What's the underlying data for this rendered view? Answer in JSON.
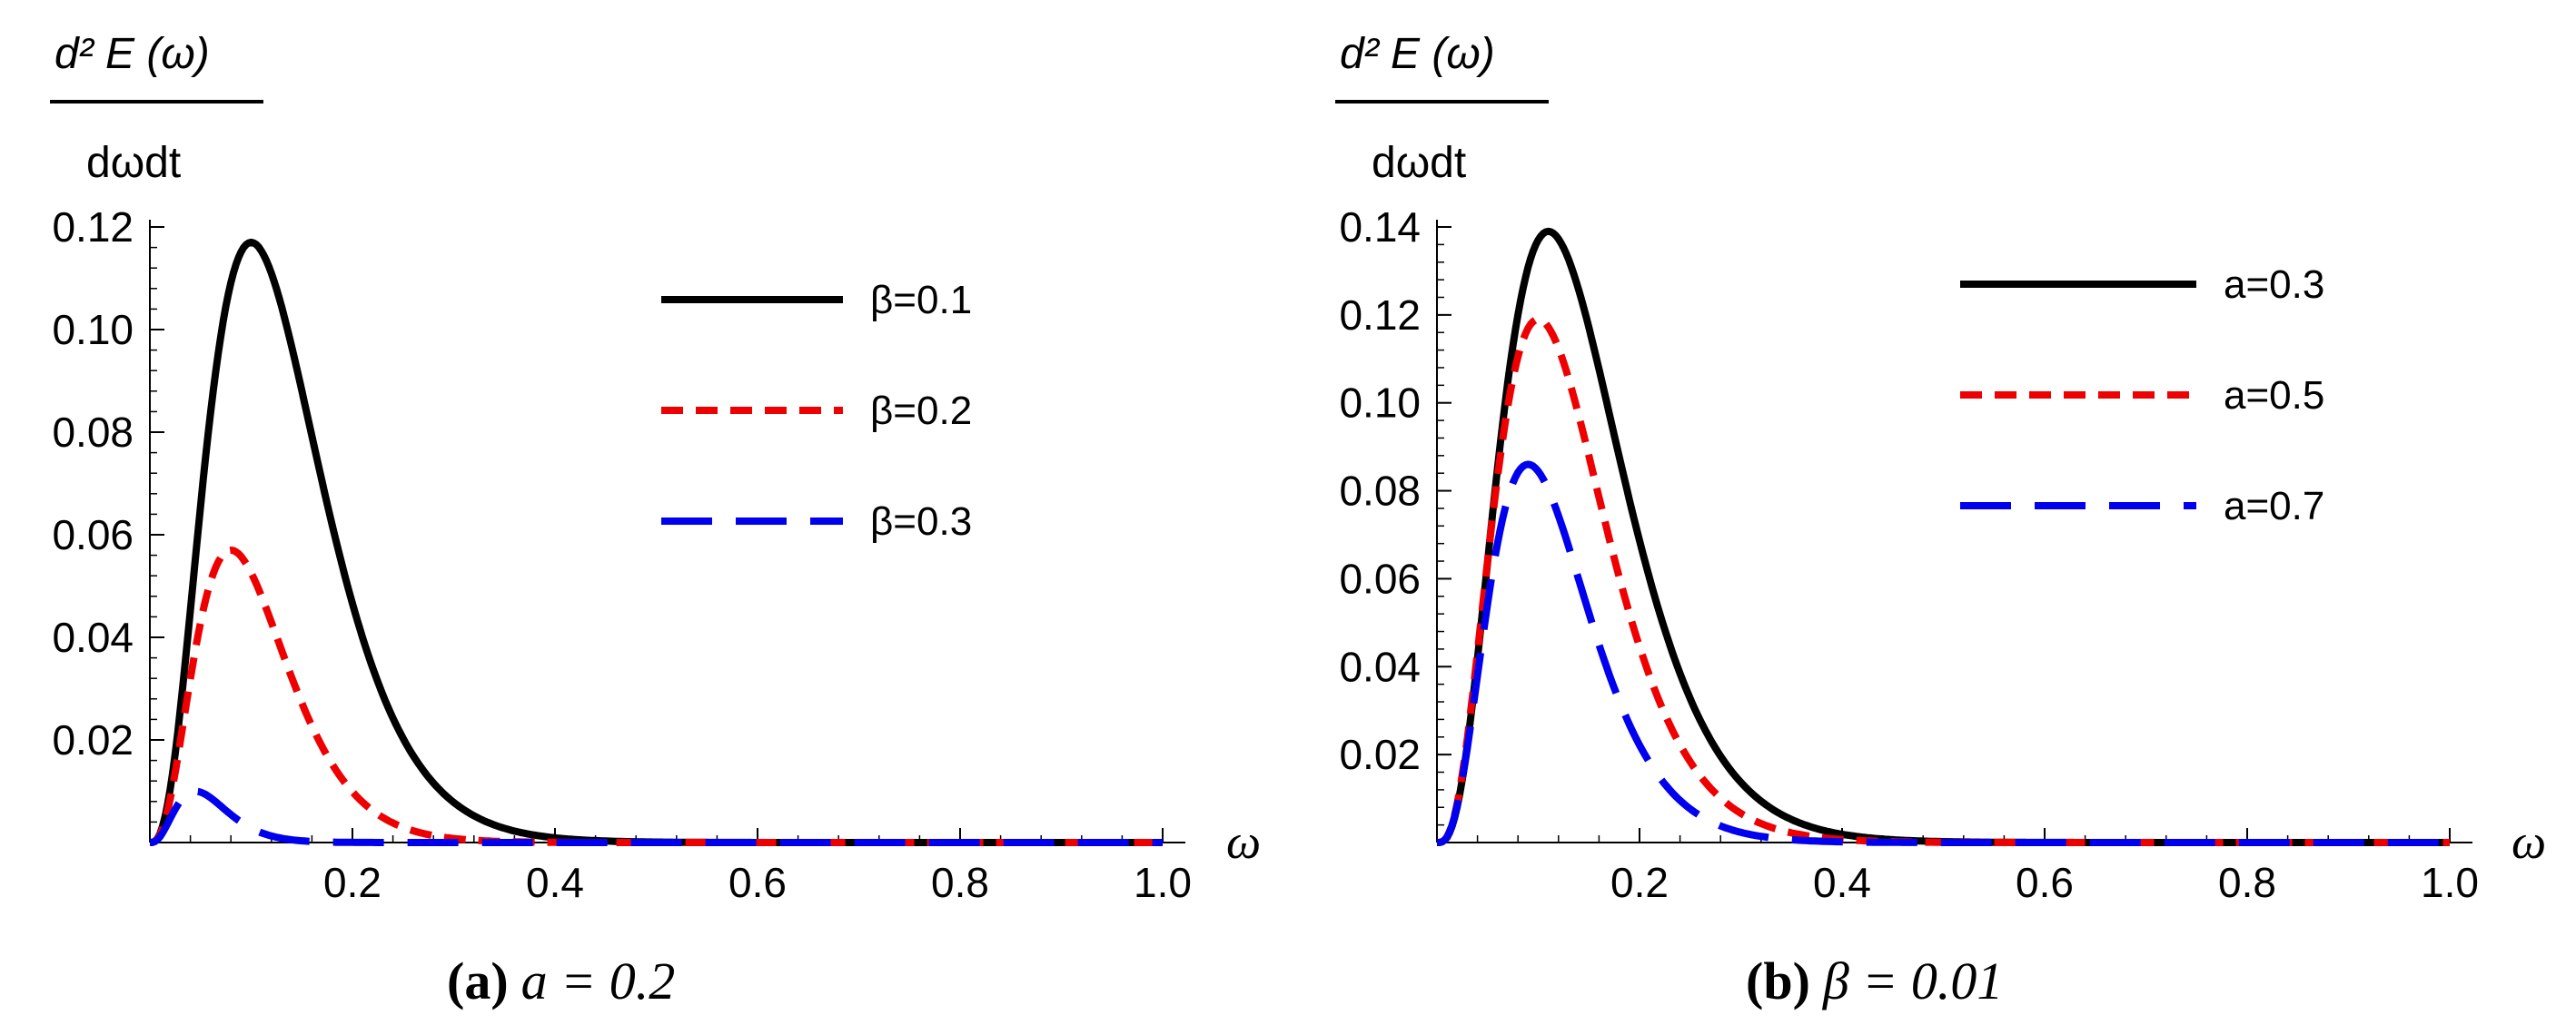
{
  "colors": {
    "black": "#000000",
    "red": "#ee0000",
    "blue": "#0000ee",
    "axis": "#000000"
  },
  "chart_data": [
    {
      "type": "line",
      "ylabel_top": "d² E (ω)",
      "ylabel_bottom": "dωdt",
      "xlabel": "ω",
      "caption_letter": "(a)",
      "caption_text": "a = 0.2",
      "xlim": [
        0,
        1.0
      ],
      "ylim": [
        0,
        0.12
      ],
      "xticks": [
        0.2,
        0.4,
        0.6,
        0.8,
        1.0
      ],
      "xtick_labels": [
        "0.2",
        "0.4",
        "0.6",
        "0.8",
        "1.0"
      ],
      "yticks": [
        0.02,
        0.04,
        0.06,
        0.08,
        0.1,
        0.12
      ],
      "ytick_labels": [
        "0.02",
        "0.04",
        "0.06",
        "0.08",
        "0.10",
        "0.12"
      ],
      "series": [
        {
          "name": "β=0.1",
          "color": "#000000",
          "style": "solid",
          "peak_x": 0.1,
          "peak_y": 0.117,
          "shape": 3
        },
        {
          "name": "β=0.2",
          "color": "#ee0000",
          "style": "dashed",
          "peak_x": 0.08,
          "peak_y": 0.057,
          "shape": 3
        },
        {
          "name": "β=0.3",
          "color": "#0000ee",
          "style": "longdash",
          "peak_x": 0.045,
          "peak_y": 0.01,
          "shape": 3
        }
      ]
    },
    {
      "type": "line",
      "ylabel_top": "d² E (ω)",
      "ylabel_bottom": "dωdt",
      "xlabel": "ω",
      "caption_letter": "(b)",
      "caption_text": "β = 0.01",
      "xlim": [
        0,
        1.0
      ],
      "ylim": [
        0,
        0.14
      ],
      "xticks": [
        0.2,
        0.4,
        0.6,
        0.8,
        1.0
      ],
      "xtick_labels": [
        "0.2",
        "0.4",
        "0.6",
        "0.8",
        "1.0"
      ],
      "yticks": [
        0.02,
        0.04,
        0.06,
        0.08,
        0.1,
        0.12,
        0.14
      ],
      "ytick_labels": [
        "0.02",
        "0.04",
        "0.06",
        "0.08",
        "0.10",
        "0.12",
        "0.14"
      ],
      "series": [
        {
          "name": "a=0.3",
          "color": "#000000",
          "style": "solid",
          "peak_x": 0.11,
          "peak_y": 0.139,
          "shape": 3.2
        },
        {
          "name": "a=0.5",
          "color": "#ee0000",
          "style": "dashed",
          "peak_x": 0.1,
          "peak_y": 0.119,
          "shape": 3.2
        },
        {
          "name": "a=0.7",
          "color": "#0000ee",
          "style": "longdash",
          "peak_x": 0.09,
          "peak_y": 0.086,
          "shape": 3.2
        }
      ]
    }
  ]
}
